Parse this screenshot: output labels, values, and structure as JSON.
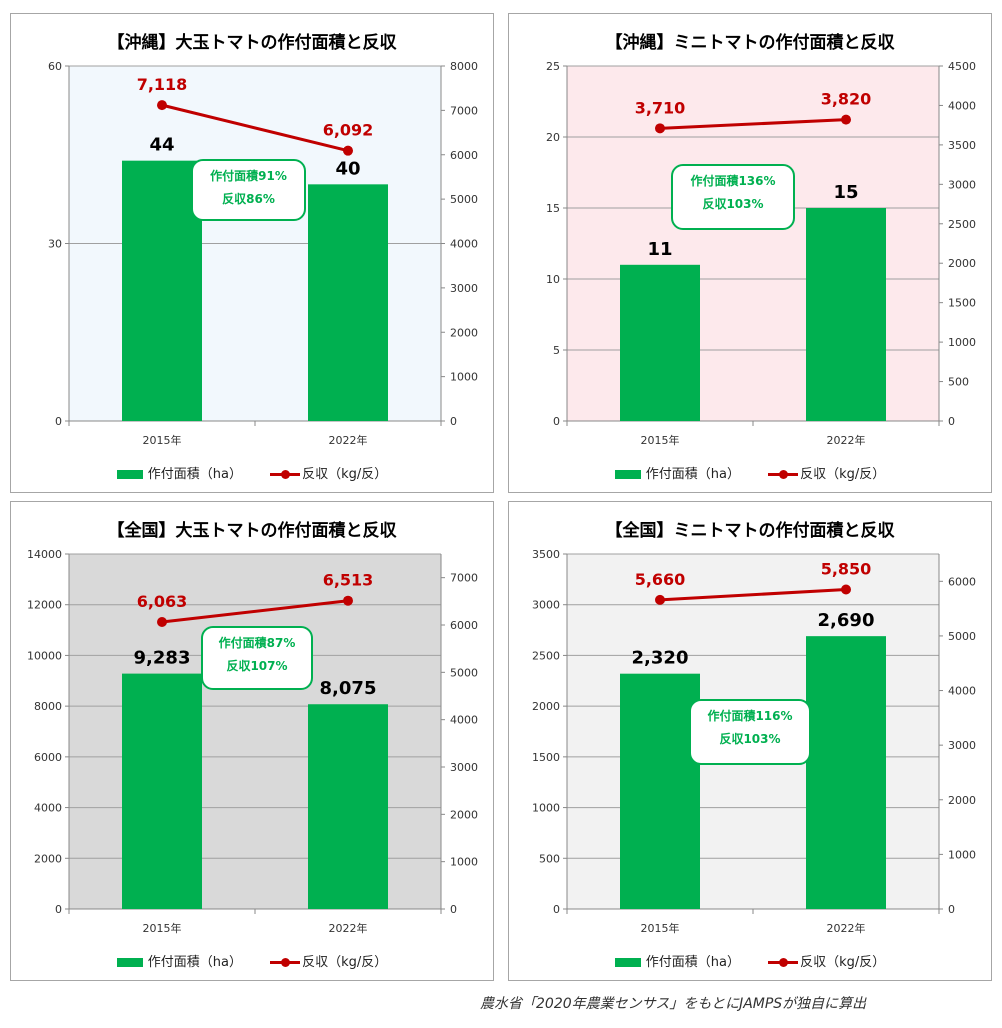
{
  "source": "農水省「2020年農業センサス」をもとにJAMPSが独自に算出",
  "colors": {
    "bar": "#00b050",
    "line": "#c00000",
    "note": "#00b050"
  },
  "chart_data": [
    {
      "type": "bar+line",
      "title": "【沖縄】大玉トマトの作付面積と反収",
      "categories": [
        "2015年",
        "2022年"
      ],
      "series": [
        {
          "name": "作付面積（ha）",
          "axis": "left",
          "kind": "bar",
          "values": [
            44,
            40
          ],
          "labels": [
            "44",
            "40"
          ]
        },
        {
          "name": "反収（kg/反）",
          "axis": "right",
          "kind": "line",
          "values": [
            7118,
            6092
          ],
          "labels": [
            "7,118",
            "6,092"
          ]
        }
      ],
      "left_axis": {
        "min": 0,
        "max": 60,
        "ticks": [
          0,
          30,
          60
        ]
      },
      "right_axis": {
        "min": 0,
        "max": 8000,
        "ticks": [
          0,
          1000,
          2000,
          3000,
          4000,
          5000,
          6000,
          7000,
          8000
        ]
      },
      "plot_bg": "#f2f8fd",
      "note": [
        "作付面積91%",
        "反収86%"
      ]
    },
    {
      "type": "bar+line",
      "title": "【沖縄】ミニトマトの作付面積と反収",
      "categories": [
        "2015年",
        "2022年"
      ],
      "series": [
        {
          "name": "作付面積（ha）",
          "axis": "left",
          "kind": "bar",
          "values": [
            11,
            15
          ],
          "labels": [
            "11",
            "15"
          ]
        },
        {
          "name": "反収（kg/反）",
          "axis": "right",
          "kind": "line",
          "values": [
            3710,
            3820
          ],
          "labels": [
            "3,710",
            "3,820"
          ]
        }
      ],
      "left_axis": {
        "min": 0,
        "max": 25,
        "ticks": [
          0,
          5,
          10,
          15,
          20,
          25
        ]
      },
      "right_axis": {
        "min": 0,
        "max": 4500,
        "ticks": [
          0,
          500,
          1000,
          1500,
          2000,
          2500,
          3000,
          3500,
          4000,
          4500
        ]
      },
      "plot_bg": "#fde9ec",
      "note": [
        "作付面積136%",
        "反収103%"
      ]
    },
    {
      "type": "bar+line",
      "title": "【全国】大玉トマトの作付面積と反収",
      "categories": [
        "2015年",
        "2022年"
      ],
      "series": [
        {
          "name": "作付面積（ha）",
          "axis": "left",
          "kind": "bar",
          "values": [
            9283,
            8075
          ],
          "labels": [
            "9,283",
            "8,075"
          ]
        },
        {
          "name": "反収（kg/反）",
          "axis": "right",
          "kind": "line",
          "values": [
            6063,
            6513
          ],
          "labels": [
            "6,063",
            "6,513"
          ]
        }
      ],
      "left_axis": {
        "min": 0,
        "max": 14000,
        "ticks": [
          0,
          2000,
          4000,
          6000,
          8000,
          10000,
          12000,
          14000
        ]
      },
      "right_axis": {
        "min": 0,
        "max": 7500,
        "ticks": [
          0,
          1000,
          2000,
          3000,
          4000,
          5000,
          6000,
          7000
        ]
      },
      "plot_bg": "#d9d9d9",
      "note": [
        "作付面積87%",
        "反収107%"
      ]
    },
    {
      "type": "bar+line",
      "title": "【全国】ミニトマトの作付面積と反収",
      "categories": [
        "2015年",
        "2022年"
      ],
      "series": [
        {
          "name": "作付面積（ha）",
          "axis": "left",
          "kind": "bar",
          "values": [
            2320,
            2690
          ],
          "labels": [
            "2,320",
            "2,690"
          ]
        },
        {
          "name": "反収（kg/反）",
          "axis": "right",
          "kind": "line",
          "values": [
            5660,
            5850
          ],
          "labels": [
            "5,660",
            "5,850"
          ]
        }
      ],
      "left_axis": {
        "min": 0,
        "max": 3500,
        "ticks": [
          0,
          500,
          1000,
          1500,
          2000,
          2500,
          3000,
          3500
        ]
      },
      "right_axis": {
        "min": 0,
        "max": 6500,
        "ticks": [
          0,
          1000,
          2000,
          3000,
          4000,
          5000,
          6000
        ]
      },
      "plot_bg": "#f2f2f2",
      "note": [
        "作付面積116%",
        "反収103%"
      ]
    }
  ]
}
